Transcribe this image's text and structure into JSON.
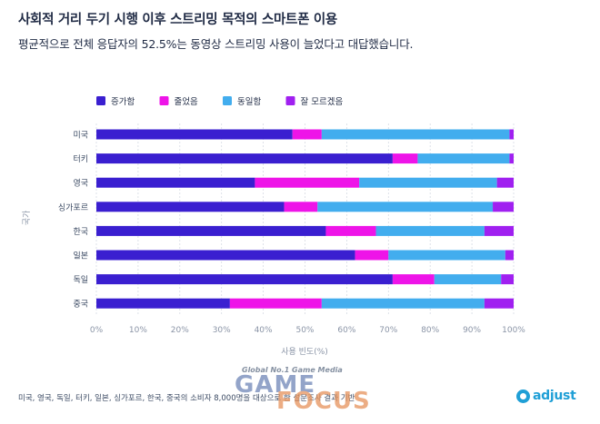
{
  "header": {
    "title": "사회적 거리 두기 시행 이후 스트리밍 목적의 스마트폰 이용",
    "subtitle": "평균적으로 전체 응답자의 52.5%는 동영상 스트리밍 사용이 늘었다고 대답했습니다."
  },
  "footer": {
    "note": "미국, 영국, 독일, 터키, 일본, 싱가포르, 한국, 중국의 소비자 8,000명을 대상으로 한 설문조사 결과 기반",
    "watermark_top": "Global No.1 Game Media",
    "watermark_game": "GAME",
    "watermark_focus": "FOCUS",
    "brand": "adjust"
  },
  "colors": {
    "increased": "#3a1fd0",
    "decreased": "#ee14e8",
    "same": "#42adee",
    "unknown": "#a020f0",
    "text": "#1f2a44",
    "axis_text": "#8a94a6",
    "grid": "#d6dae3"
  },
  "chart_data": {
    "type": "bar",
    "orientation": "horizontal",
    "stacked": true,
    "normalized": true,
    "categories": [
      "미국",
      "터키",
      "영국",
      "싱가포르",
      "한국",
      "일본",
      "독일",
      "중국"
    ],
    "series": [
      {
        "name": "증가함",
        "color": "#3a1fd0",
        "values": [
          47,
          71,
          38,
          45,
          55,
          62,
          71,
          32
        ]
      },
      {
        "name": "줄었음",
        "color": "#ee14e8",
        "values": [
          7,
          6,
          25,
          8,
          12,
          8,
          10,
          22
        ]
      },
      {
        "name": "동일함",
        "color": "#42adee",
        "values": [
          45,
          22,
          33,
          42,
          26,
          28,
          16,
          39
        ]
      },
      {
        "name": "잘 모르겠음",
        "color": "#a020f0",
        "values": [
          1,
          1,
          4,
          5,
          7,
          2,
          3,
          7
        ]
      }
    ],
    "xlabel": "사용 빈도(%)",
    "ylabel": "국가",
    "xlim": [
      0,
      100
    ],
    "xticks": [
      "0%",
      "10%",
      "20%",
      "30%",
      "40%",
      "50%",
      "60%",
      "70%",
      "80%",
      "90%",
      "100%"
    ],
    "legend_position": "top-left",
    "grid": true
  }
}
